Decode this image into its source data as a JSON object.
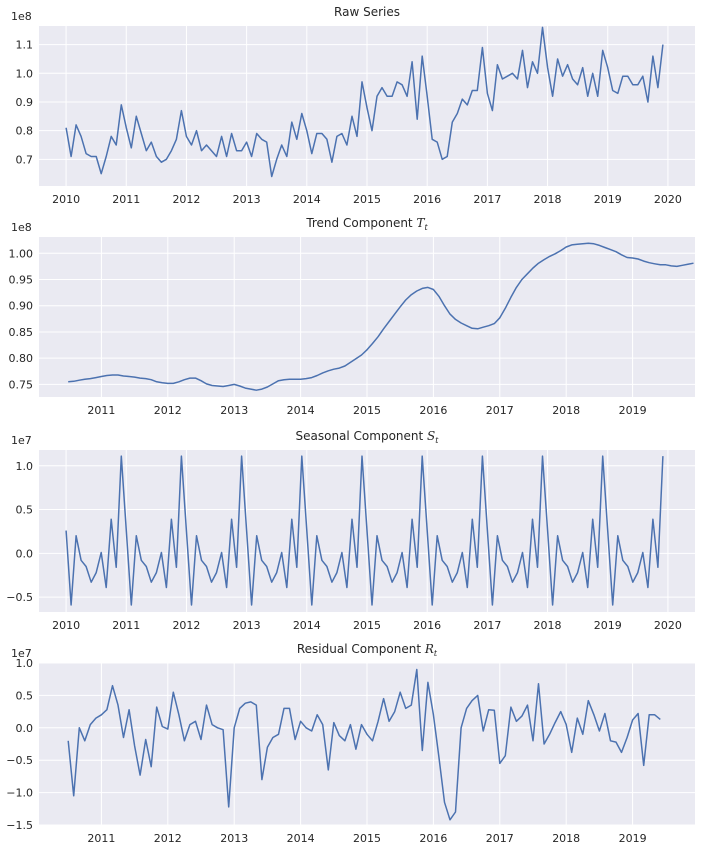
{
  "chart_data": [
    {
      "type": "line",
      "title": "Raw Series",
      "multiplier": "1e8",
      "line_color": "#4c72b0",
      "xlim": [
        2009.55,
        2020.45
      ],
      "ylim": [
        0.607,
        1.165
      ],
      "xticks": [
        2010,
        2011,
        2012,
        2013,
        2014,
        2015,
        2016,
        2017,
        2018,
        2019,
        2020
      ],
      "xtick_labels": [
        "2010",
        "2011",
        "2012",
        "2013",
        "2014",
        "2015",
        "2016",
        "2017",
        "2018",
        "2019",
        "2020"
      ],
      "yticks": [
        0.7,
        0.8,
        0.9,
        1.0,
        1.1
      ],
      "ytick_labels": [
        "0.7",
        "0.8",
        "0.9",
        "1.0",
        "1.1"
      ],
      "series": [
        {
          "x_start": 2010.0,
          "x_step": 0.0833333,
          "values": [
            0.81,
            0.71,
            0.82,
            0.78,
            0.72,
            0.71,
            0.71,
            0.65,
            0.71,
            0.78,
            0.75,
            0.89,
            0.81,
            0.74,
            0.85,
            0.79,
            0.73,
            0.76,
            0.71,
            0.69,
            0.7,
            0.73,
            0.77,
            0.87,
            0.78,
            0.75,
            0.8,
            0.73,
            0.75,
            0.73,
            0.71,
            0.78,
            0.71,
            0.79,
            0.73,
            0.73,
            0.76,
            0.71,
            0.79,
            0.77,
            0.76,
            0.64,
            0.7,
            0.75,
            0.71,
            0.83,
            0.77,
            0.86,
            0.8,
            0.72,
            0.79,
            0.79,
            0.77,
            0.69,
            0.78,
            0.79,
            0.75,
            0.85,
            0.78,
            0.97,
            0.88,
            0.8,
            0.92,
            0.95,
            0.92,
            0.92,
            0.97,
            0.96,
            0.92,
            1.04,
            0.84,
            1.06,
            0.92,
            0.77,
            0.76,
            0.7,
            0.71,
            0.83,
            0.86,
            0.91,
            0.89,
            0.94,
            0.94,
            1.09,
            0.93,
            0.87,
            1.03,
            0.98,
            0.99,
            1.0,
            0.98,
            1.08,
            0.95,
            1.04,
            1.0,
            1.16,
            1.02,
            0.92,
            1.05,
            0.99,
            1.03,
            0.98,
            0.96,
            1.02,
            0.92,
            1.0,
            0.92,
            1.08,
            1.02,
            0.94,
            0.93,
            0.99,
            0.99,
            0.96,
            0.96,
            0.99,
            0.9,
            1.06,
            0.95,
            1.1
          ]
        }
      ]
    },
    {
      "type": "line",
      "title": "Trend Component $T_t$",
      "title_text": "Trend Component ",
      "title_math_base": "T",
      "title_math_sub": "t",
      "multiplier": "1e8",
      "line_color": "#4c72b0",
      "xlim": [
        2010.06,
        2019.94
      ],
      "ylim": [
        0.726,
        1.031
      ],
      "xticks": [
        2011,
        2012,
        2013,
        2014,
        2015,
        2016,
        2017,
        2018,
        2019
      ],
      "xtick_labels": [
        "2011",
        "2012",
        "2013",
        "2014",
        "2015",
        "2016",
        "2017",
        "2018",
        "2019"
      ],
      "yticks": [
        0.75,
        0.8,
        0.85,
        0.9,
        0.95,
        1.0
      ],
      "ytick_labels": [
        "0.75",
        "0.80",
        "0.85",
        "0.90",
        "0.95",
        "1.00"
      ],
      "series": [
        {
          "x_start": 2010.5,
          "x_step": 0.0833333,
          "values": [
            0.755,
            0.756,
            0.758,
            0.76,
            0.761,
            0.763,
            0.765,
            0.767,
            0.768,
            0.768,
            0.766,
            0.765,
            0.764,
            0.762,
            0.761,
            0.759,
            0.755,
            0.753,
            0.752,
            0.752,
            0.755,
            0.759,
            0.762,
            0.762,
            0.757,
            0.751,
            0.748,
            0.747,
            0.746,
            0.748,
            0.75,
            0.747,
            0.743,
            0.741,
            0.739,
            0.741,
            0.745,
            0.751,
            0.757,
            0.759,
            0.76,
            0.76,
            0.76,
            0.761,
            0.763,
            0.767,
            0.772,
            0.776,
            0.779,
            0.781,
            0.785,
            0.792,
            0.799,
            0.806,
            0.816,
            0.828,
            0.841,
            0.856,
            0.87,
            0.884,
            0.898,
            0.911,
            0.921,
            0.928,
            0.933,
            0.935,
            0.931,
            0.918,
            0.9,
            0.884,
            0.874,
            0.867,
            0.862,
            0.857,
            0.856,
            0.859,
            0.862,
            0.866,
            0.877,
            0.895,
            0.916,
            0.935,
            0.95,
            0.961,
            0.972,
            0.981,
            0.988,
            0.994,
            0.999,
            1.005,
            1.012,
            1.016,
            1.017,
            1.018,
            1.019,
            1.018,
            1.015,
            1.011,
            1.007,
            1.003,
            0.997,
            0.992,
            0.991,
            0.989,
            0.985,
            0.982,
            0.98,
            0.978,
            0.978,
            0.976,
            0.975,
            0.977,
            0.979,
            0.981
          ]
        }
      ]
    },
    {
      "type": "line",
      "title": "Seasonal Component $S_t$",
      "title_text": "Seasonal Component ",
      "title_math_base": "S",
      "title_math_sub": "t",
      "multiplier": "1e7",
      "line_color": "#4c72b0",
      "xlim": [
        2009.55,
        2020.45
      ],
      "ylim": [
        -0.67,
        1.18
      ],
      "xticks": [
        2010,
        2011,
        2012,
        2013,
        2014,
        2015,
        2016,
        2017,
        2018,
        2019,
        2020
      ],
      "xtick_labels": [
        "2010",
        "2011",
        "2012",
        "2013",
        "2014",
        "2015",
        "2016",
        "2017",
        "2018",
        "2019",
        "2020"
      ],
      "yticks": [
        -0.5,
        0.0,
        0.5,
        1.0
      ],
      "ytick_labels": [
        "−0.5",
        "0.0",
        "0.5",
        "1.0"
      ],
      "series": [
        {
          "x_start": 2010.0,
          "x_step": 0.0833333,
          "pattern": [
            0.26,
            -0.59,
            0.2,
            -0.08,
            -0.15,
            -0.33,
            -0.22,
            0.01,
            -0.39,
            0.39,
            -0.16,
            1.11
          ],
          "repeat": 10
        }
      ]
    },
    {
      "type": "line",
      "title": "Residual Component $R_t$",
      "title_text": "Residual Component ",
      "title_math_base": "R",
      "title_math_sub": "t",
      "multiplier": "1e7",
      "line_color": "#4c72b0",
      "xlim": [
        2010.06,
        2019.94
      ],
      "ylim": [
        -1.5,
        1.0
      ],
      "xticks": [
        2011,
        2012,
        2013,
        2014,
        2015,
        2016,
        2017,
        2018,
        2019
      ],
      "xtick_labels": [
        "2011",
        "2012",
        "2013",
        "2014",
        "2015",
        "2016",
        "2017",
        "2018",
        "2019"
      ],
      "yticks": [
        -1.5,
        -1.0,
        -0.5,
        0.0,
        0.5,
        1.0
      ],
      "ytick_labels": [
        "−1.5",
        "−1.0",
        "−0.5",
        "0.0",
        "0.5",
        "1.0"
      ],
      "series": [
        {
          "x_start": 2010.5,
          "x_step": 0.0833333,
          "values": [
            -0.2,
            -1.05,
            0.0,
            -0.2,
            0.05,
            0.15,
            0.2,
            0.28,
            0.65,
            0.35,
            -0.15,
            0.28,
            -0.28,
            -0.73,
            -0.18,
            -0.6,
            0.32,
            0.02,
            -0.02,
            0.55,
            0.2,
            -0.2,
            0.05,
            0.1,
            -0.18,
            0.35,
            0.05,
            0.0,
            -0.03,
            -1.22,
            0.0,
            0.3,
            0.38,
            0.4,
            0.35,
            -0.8,
            -0.3,
            -0.15,
            -0.1,
            0.3,
            0.3,
            -0.18,
            0.1,
            0.0,
            -0.05,
            0.2,
            0.05,
            -0.65,
            0.08,
            -0.12,
            -0.2,
            0.05,
            -0.33,
            0.05,
            -0.1,
            -0.2,
            0.1,
            0.45,
            0.1,
            0.25,
            0.55,
            0.3,
            0.35,
            0.9,
            -0.35,
            0.7,
            0.2,
            -0.45,
            -1.15,
            -1.42,
            -1.3,
            0.0,
            0.3,
            0.42,
            0.5,
            -0.05,
            0.28,
            0.27,
            -0.55,
            -0.43,
            0.32,
            0.1,
            0.18,
            0.35,
            -0.2,
            0.68,
            -0.25,
            -0.1,
            0.08,
            0.25,
            0.05,
            -0.38,
            0.15,
            -0.1,
            0.42,
            0.2,
            -0.05,
            0.22,
            -0.2,
            -0.22,
            -0.38,
            -0.15,
            0.12,
            0.22,
            -0.58,
            0.2,
            0.2,
            0.13
          ]
        }
      ]
    }
  ]
}
